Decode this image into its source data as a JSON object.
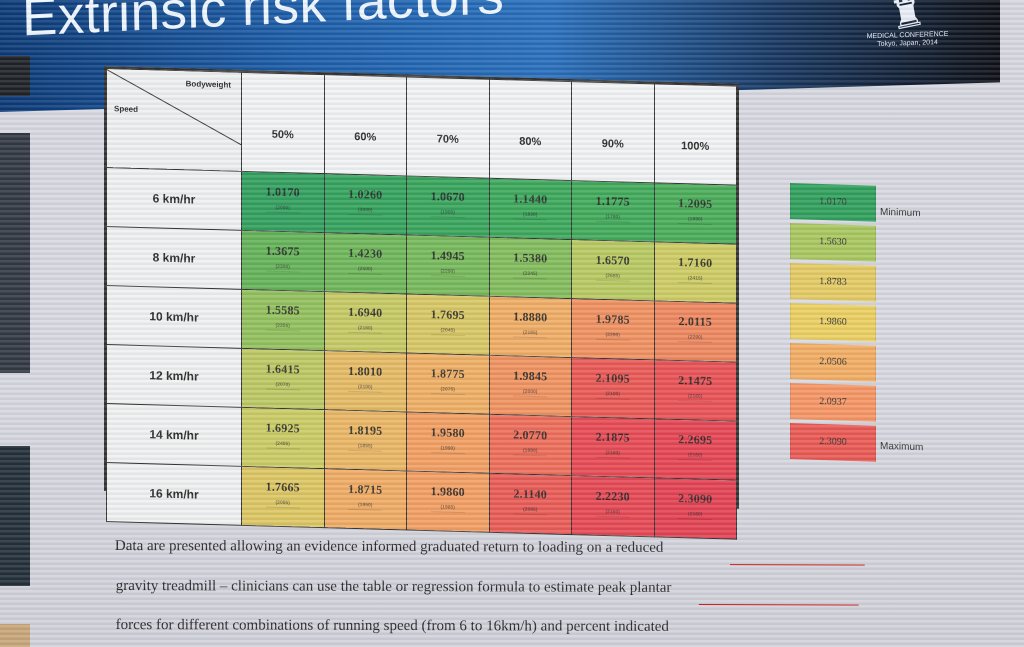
{
  "header": {
    "title": "Extrinsic risk factors",
    "logo_lines": [
      "MEDICAL CONFERENCE",
      "Tokyo, Japan, 2014"
    ]
  },
  "table": {
    "corner_top_label": "Bodyweight",
    "corner_left_label": "Speed",
    "columns": [
      "50%",
      "60%",
      "70%",
      "80%",
      "90%",
      "100%"
    ],
    "rows": [
      {
        "label": "6 km/hr",
        "cells": [
          {
            "value": "1.0170",
            "count": "(3000)",
            "color": "#34a160"
          },
          {
            "value": "1.0260",
            "count": "(3000)",
            "color": "#37a45f"
          },
          {
            "value": "1.0670",
            "count": "(1905)",
            "color": "#3aa65e"
          },
          {
            "value": "1.1440",
            "count": "(1830)",
            "color": "#3ea95d"
          },
          {
            "value": "1.1775",
            "count": "(1780)",
            "color": "#43ab5c"
          },
          {
            "value": "1.2095",
            "count": "(1690)",
            "color": "#4cae5b"
          }
        ]
      },
      {
        "label": "8 km/hr",
        "cells": [
          {
            "value": "1.3675",
            "count": "(2300)",
            "color": "#66b35b"
          },
          {
            "value": "1.4230",
            "count": "(2500)",
            "color": "#70b75c"
          },
          {
            "value": "1.4945",
            "count": "(2290)",
            "color": "#78ba5d"
          },
          {
            "value": "1.5380",
            "count": "(2245)",
            "color": "#84bd5f"
          },
          {
            "value": "1.6570",
            "count": "(2685)",
            "color": "#b9ca63"
          },
          {
            "value": "1.7160",
            "count": "(2415)",
            "color": "#cecc66"
          }
        ]
      },
      {
        "label": "10 km/hr",
        "cells": [
          {
            "value": "1.5585",
            "count": "(2255)",
            "color": "#93c15f"
          },
          {
            "value": "1.6940",
            "count": "(2160)",
            "color": "#c6ca66"
          },
          {
            "value": "1.7695",
            "count": "(2045)",
            "color": "#d8c866"
          },
          {
            "value": "1.8880",
            "count": "(2165)",
            "color": "#f0ae67"
          },
          {
            "value": "1.9785",
            "count": "(2290)",
            "color": "#f09263"
          },
          {
            "value": "2.0115",
            "count": "(2290)",
            "color": "#ee8961"
          }
        ]
      },
      {
        "label": "12 km/hr",
        "cells": [
          {
            "value": "1.6415",
            "count": "(2070)",
            "color": "#bdc865"
          },
          {
            "value": "1.8010",
            "count": "(2100)",
            "color": "#e5bb66"
          },
          {
            "value": "1.8775",
            "count": "(2075)",
            "color": "#efb066"
          },
          {
            "value": "1.9845",
            "count": "(2000)",
            "color": "#f09462"
          },
          {
            "value": "2.1095",
            "count": "(2100)",
            "color": "#e95b58"
          },
          {
            "value": "2.1475",
            "count": "(2160)",
            "color": "#e95457"
          }
        ]
      },
      {
        "label": "14 km/hr",
        "cells": [
          {
            "value": "1.6925",
            "count": "(2405)",
            "color": "#cbcc66"
          },
          {
            "value": "1.8195",
            "count": "(1855)",
            "color": "#eab767"
          },
          {
            "value": "1.9580",
            "count": "(1990)",
            "color": "#f2a064"
          },
          {
            "value": "2.0770",
            "count": "(1980)",
            "color": "#ee6f5c"
          },
          {
            "value": "2.1875",
            "count": "(2160)",
            "color": "#e84d56"
          },
          {
            "value": "2.2695",
            "count": "(2160)",
            "color": "#e74756"
          }
        ]
      },
      {
        "label": "16 km/hr",
        "cells": [
          {
            "value": "1.7665",
            "count": "(2085)",
            "color": "#dcc765"
          },
          {
            "value": "1.8715",
            "count": "(1950)",
            "color": "#f0ad66"
          },
          {
            "value": "1.9860",
            "count": "(1985)",
            "color": "#f3a065"
          },
          {
            "value": "2.1140",
            "count": "(2085)",
            "color": "#ea5d59"
          },
          {
            "value": "2.2230",
            "count": "(2160)",
            "color": "#e54b56"
          },
          {
            "value": "2.3090",
            "count": "(2160)",
            "color": "#e34455"
          }
        ]
      }
    ]
  },
  "legend": {
    "items": [
      {
        "value": "1.0170",
        "label": "Minimum",
        "color": "#32a15f"
      },
      {
        "value": "1.5630",
        "label": "",
        "color": "#aac761"
      },
      {
        "value": "1.8783",
        "label": "",
        "color": "#e4cb65"
      },
      {
        "value": "1.9860",
        "label": "",
        "color": "#ecd064"
      },
      {
        "value": "2.0506",
        "label": "",
        "color": "#f2ae65"
      },
      {
        "value": "2.0937",
        "label": "",
        "color": "#f59766"
      },
      {
        "value": "2.3090",
        "label": "Maximum",
        "color": "#ea5b56"
      }
    ]
  },
  "caption": {
    "line1": "Data are presented allowing an evidence informed graduated return to loading on a reduced",
    "line2": "gravity treadmill – clinicians can use the table or regression formula to estimate peak plantar",
    "line3": "forces for different combinations of running speed (from 6 to 16km/h) and percent indicated"
  }
}
